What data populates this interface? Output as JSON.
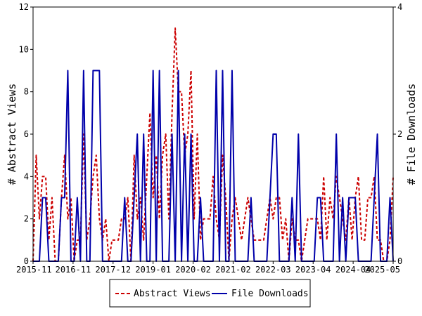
{
  "chart_data": {
    "type": "line",
    "title": "",
    "x_tick_labels": [
      "2015-11",
      "2016-11",
      "2017-12",
      "2019-01",
      "2020-02",
      "2021-02",
      "2022-03",
      "2023-04",
      "2024-04",
      "2025-05"
    ],
    "y_left": {
      "label": "# Abstract Views",
      "lim": [
        0,
        12
      ],
      "ticks": [
        0,
        2,
        4,
        6,
        8,
        10,
        12
      ]
    },
    "y_right": {
      "label": "# File Downloads",
      "lim": [
        0,
        4
      ],
      "ticks": [
        0,
        2,
        4
      ]
    },
    "x_range_months": [
      0,
      114
    ],
    "grid": false,
    "legend": "bottom-center",
    "series": [
      {
        "name": "Abstract Views",
        "axis": "left",
        "color": "#cc0000",
        "style": "dashed",
        "values": [
          0,
          5,
          2,
          4,
          4,
          1,
          3,
          0,
          0,
          3,
          5,
          2,
          3,
          0,
          1,
          1,
          6,
          1,
          2,
          4,
          5,
          2,
          1,
          2,
          0,
          1,
          1,
          1,
          2,
          2,
          3,
          0,
          5,
          2,
          3,
          1,
          4,
          7,
          3,
          5,
          2,
          5,
          6,
          2,
          7,
          11,
          8,
          8,
          5,
          6,
          9,
          2,
          6,
          1,
          2,
          2,
          2,
          4,
          2,
          1,
          5,
          3,
          0,
          2,
          3,
          2,
          1,
          2,
          3,
          2,
          1,
          1,
          1,
          1,
          2,
          3,
          2,
          3,
          3,
          1,
          2,
          0,
          2,
          1,
          1,
          0,
          1,
          2,
          2,
          2,
          2,
          1,
          4,
          1,
          3,
          2,
          4,
          3,
          2,
          1,
          3,
          1,
          3,
          4,
          1,
          1,
          3,
          3,
          4,
          1,
          1,
          0,
          0,
          1,
          4
        ]
      },
      {
        "name": "File Downloads",
        "axis": "right",
        "color": "#0000aa",
        "style": "solid",
        "values": [
          0,
          0,
          0,
          1,
          1,
          0,
          0,
          0,
          0,
          1,
          1,
          3,
          0,
          0,
          1,
          0,
          3,
          0,
          0,
          3,
          3,
          3,
          0,
          0,
          0,
          0,
          0,
          0,
          0,
          1,
          0,
          0,
          1,
          2,
          0,
          2,
          0,
          0,
          3,
          0,
          3,
          0,
          0,
          0,
          2,
          0,
          3,
          0,
          2,
          0,
          2,
          0,
          0,
          1,
          0,
          0,
          0,
          0,
          3,
          0,
          3,
          0,
          0,
          3,
          0,
          0,
          0,
          0,
          0,
          1,
          0,
          0,
          0,
          0,
          0,
          1,
          2,
          2,
          0,
          0,
          0,
          0,
          1,
          0,
          2,
          0,
          0,
          0,
          0,
          0,
          1,
          1,
          0,
          0,
          0,
          0,
          2,
          0,
          1,
          0,
          1,
          1,
          1,
          0,
          0,
          0,
          0,
          0,
          1,
          2,
          0,
          0,
          0,
          1,
          0
        ]
      }
    ]
  }
}
